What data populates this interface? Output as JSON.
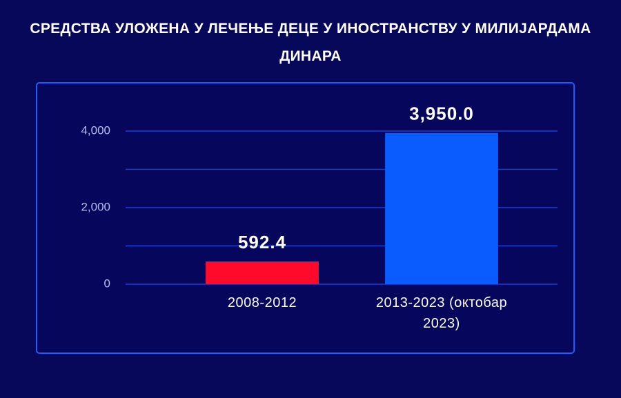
{
  "chart_data": {
    "type": "bar",
    "title": "СРЕДСТВА УЛОЖЕНА У ЛЕЧЕЊЕ ДЕЦЕ У ИНОСТРАНСТВУ У МИЛИЈАРДАМА ДИНАРА",
    "categories": [
      "2008-2012",
      "2013-2023 (октобар 2023)"
    ],
    "values": [
      592.4,
      3950.0
    ],
    "value_labels": [
      "592.4",
      "3,950.0"
    ],
    "colors": [
      "#ff0a2a",
      "#0a5cff"
    ],
    "ylim": [
      0,
      4000
    ],
    "yticks": [
      0,
      {
        "value": 2000,
        "label": "2,000"
      },
      {
        "value": 4000,
        "label": "4,000"
      }
    ],
    "minor_yticks": [
      1000,
      3000
    ],
    "grid": true
  }
}
